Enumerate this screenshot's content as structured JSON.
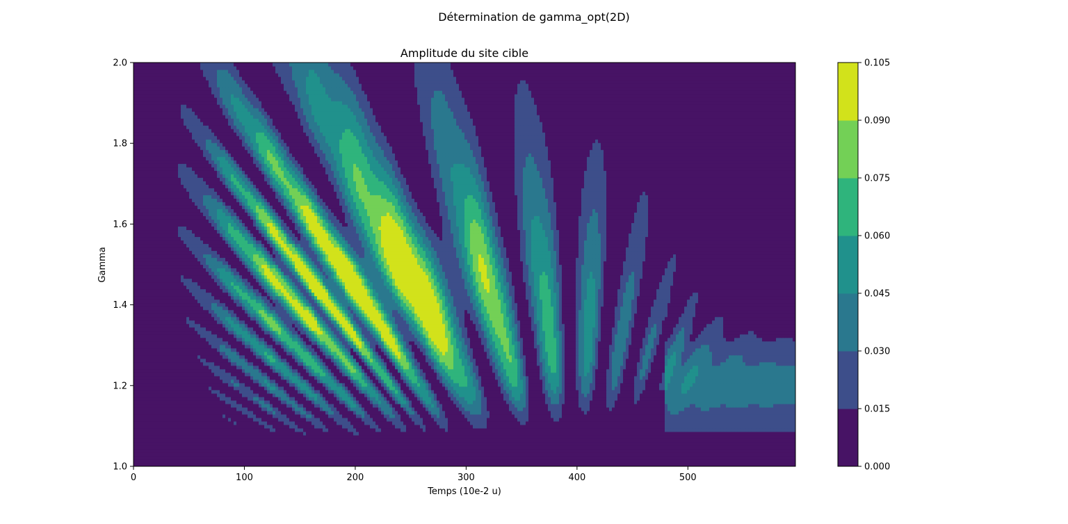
{
  "suptitle": "Détermination de gamma_opt(2D)",
  "chart_data": {
    "type": "heatmap",
    "subtype": "filled-contour",
    "title": "Amplitude du site cible",
    "xlabel": "Temps (10e-2 u)",
    "ylabel": "Gamma",
    "xlim": [
      0,
      597
    ],
    "ylim": [
      1.0,
      2.0
    ],
    "x_ticks": [
      "0",
      "100",
      "200",
      "300",
      "400",
      "500"
    ],
    "x_tick_values": [
      0,
      100,
      200,
      300,
      400,
      500
    ],
    "y_ticks": [
      "1.0",
      "1.2",
      "1.4",
      "1.6",
      "1.8",
      "2.0"
    ],
    "y_tick_values": [
      1.0,
      1.2,
      1.4,
      1.6,
      1.8,
      2.0
    ],
    "levels": [
      0.0,
      0.015,
      0.03,
      0.045,
      0.06,
      0.075,
      0.09,
      0.105
    ],
    "colorbar_ticks": [
      "0.000",
      "0.015",
      "0.030",
      "0.045",
      "0.060",
      "0.075",
      "0.090",
      "0.105"
    ],
    "colormap": [
      "#471365",
      "#3d4e8a",
      "#2a788e",
      "#20918c",
      "#2fb47c",
      "#73d056",
      "#d2e21b"
    ],
    "peak": {
      "x": 213,
      "y": 1.45,
      "value": 0.095
    },
    "grid": false
  }
}
